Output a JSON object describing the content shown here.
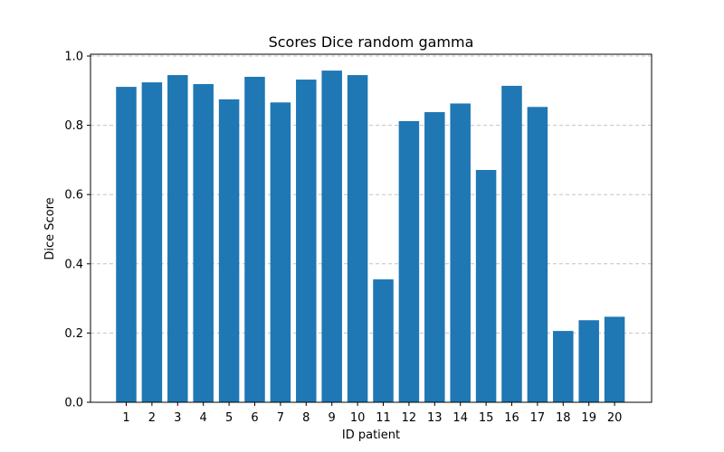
{
  "chart_data": {
    "type": "bar",
    "title": "Scores Dice random gamma",
    "xlabel": "ID patient",
    "ylabel": "Dice Score",
    "categories": [
      "1",
      "2",
      "3",
      "4",
      "5",
      "6",
      "7",
      "8",
      "9",
      "10",
      "11",
      "12",
      "13",
      "14",
      "15",
      "16",
      "17",
      "18",
      "19",
      "20"
    ],
    "values": [
      0.911,
      0.924,
      0.945,
      0.919,
      0.875,
      0.94,
      0.866,
      0.932,
      0.958,
      0.945,
      0.355,
      0.812,
      0.838,
      0.863,
      0.671,
      0.914,
      0.853,
      0.206,
      0.237,
      0.247
    ],
    "ylim": [
      0,
      1.0
    ],
    "yticks": [
      0.0,
      0.2,
      0.4,
      0.6,
      0.8,
      1.0
    ],
    "ytick_labels": [
      "0.0",
      "0.2",
      "0.4",
      "0.6",
      "0.8",
      "1.0"
    ],
    "grid": "y-dashed",
    "bar_color": "#1f77b4"
  }
}
